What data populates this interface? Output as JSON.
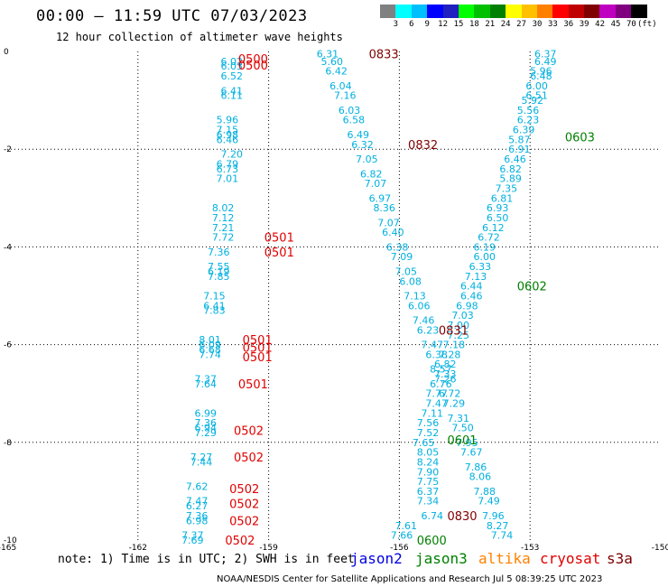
{
  "title": "00:00 – 11:59 UTC 07/03/2023",
  "subtitle": "12 hour collection of altimeter wave heights",
  "colorbar": {
    "colors": [
      "#808080",
      "#00ffff",
      "#00bfff",
      "#0000ff",
      "#2020c0",
      "#00ff00",
      "#00c000",
      "#008000",
      "#ffff00",
      "#ffc000",
      "#ff8000",
      "#ff0000",
      "#c00000",
      "#800000",
      "#c000c0",
      "#800080",
      "#000000"
    ],
    "labels": [
      "3",
      "6",
      "9",
      "12",
      "15",
      "18",
      "21",
      "24",
      "27",
      "30",
      "33",
      "36",
      "39",
      "42",
      "45",
      "70",
      "(ft)"
    ]
  },
  "map": {
    "xlim": [
      -165,
      -150
    ],
    "ylim": [
      -10,
      0
    ],
    "x_ticks": [
      "-165",
      "-162",
      "-159",
      "-156",
      "-153",
      "-150"
    ],
    "y_ticks": [
      "0",
      "-2",
      "-4",
      "-6",
      "-8",
      "-10"
    ]
  },
  "chart_data": {
    "type": "scatter",
    "xlim": [
      -165,
      -150
    ],
    "ylim": [
      -10,
      0
    ],
    "tracks": [
      {
        "color": "#00b0e0",
        "points": [
          [
            -160.1,
            -0.2,
            "6.02"
          ],
          [
            -160.1,
            -0.3,
            "6.03"
          ],
          [
            -160.1,
            -0.5,
            "6.52"
          ],
          [
            -160.1,
            -0.8,
            "6.41"
          ],
          [
            -160.1,
            -0.9,
            "6.11"
          ],
          [
            -160.2,
            -1.4,
            "5.96"
          ],
          [
            -160.2,
            -1.6,
            "7.15"
          ],
          [
            -160.2,
            -1.7,
            "6.98"
          ],
          [
            -160.2,
            -1.8,
            "6.46"
          ],
          [
            -160.1,
            -2.1,
            "7.20"
          ],
          [
            -160.2,
            -2.3,
            "6.79"
          ],
          [
            -160.2,
            -2.4,
            "6.73"
          ],
          [
            -160.2,
            -2.6,
            "7.01"
          ],
          [
            -160.3,
            -3.2,
            "8.02"
          ],
          [
            -160.3,
            -3.4,
            "7.12"
          ],
          [
            -160.3,
            -3.6,
            "7.21"
          ],
          [
            -160.3,
            -3.8,
            "7.72"
          ],
          [
            -160.4,
            -4.1,
            "7.36"
          ],
          [
            -160.4,
            -4.4,
            "7.55"
          ],
          [
            -160.4,
            -4.5,
            "6.19"
          ],
          [
            -160.4,
            -4.6,
            "7.85"
          ],
          [
            -160.5,
            -5.0,
            "7.15"
          ],
          [
            -160.5,
            -5.2,
            "6.41"
          ],
          [
            -160.5,
            -5.3,
            "7.83"
          ],
          [
            -160.6,
            -5.9,
            "8.01"
          ],
          [
            -160.6,
            -6.0,
            "6.09"
          ],
          [
            -160.6,
            -6.1,
            "6.68"
          ],
          [
            -160.6,
            -6.2,
            "7.74"
          ],
          [
            -160.7,
            -6.7,
            "7.37"
          ],
          [
            -160.7,
            -6.8,
            "7.64"
          ],
          [
            -160.7,
            -7.4,
            "6.99"
          ],
          [
            -160.7,
            -7.6,
            "7.36"
          ],
          [
            -160.7,
            -7.7,
            "6.94"
          ],
          [
            -160.7,
            -7.8,
            "7.29"
          ],
          [
            -160.8,
            -8.3,
            "7.27"
          ],
          [
            -160.8,
            -8.4,
            "7.44"
          ],
          [
            -160.9,
            -8.9,
            "7.62"
          ],
          [
            -160.9,
            -9.2,
            "7.47"
          ],
          [
            -160.9,
            -9.3,
            "6.27"
          ],
          [
            -160.9,
            -9.5,
            "7.36"
          ],
          [
            -160.9,
            -9.6,
            "6.98"
          ],
          [
            -161.0,
            -9.9,
            "7.37"
          ],
          [
            -161.0,
            -10.0,
            "7.69"
          ]
        ]
      },
      {
        "color": "#00b0e0",
        "points": [
          [
            -157.9,
            -0.05,
            "6.31"
          ],
          [
            -157.8,
            -0.2,
            "5.60"
          ],
          [
            -157.7,
            -0.4,
            "6.42"
          ],
          [
            -157.6,
            -0.7,
            "6.04"
          ],
          [
            -157.5,
            -0.9,
            "7.16"
          ],
          [
            -157.4,
            -1.2,
            "6.03"
          ],
          [
            -157.3,
            -1.4,
            "6.58"
          ],
          [
            -157.2,
            -1.7,
            "6.49"
          ],
          [
            -157.1,
            -1.9,
            "6.32"
          ],
          [
            -157.0,
            -2.2,
            "7.05"
          ],
          [
            -156.9,
            -2.5,
            "6.82"
          ],
          [
            -156.8,
            -2.7,
            "7.07"
          ],
          [
            -156.7,
            -3.0,
            "6.97"
          ],
          [
            -156.6,
            -3.2,
            "8.36"
          ],
          [
            -156.5,
            -3.5,
            "7.07"
          ],
          [
            -156.4,
            -3.7,
            "6.40"
          ],
          [
            -156.3,
            -4.0,
            "6.38"
          ],
          [
            -156.2,
            -4.2,
            "7.09"
          ],
          [
            -156.1,
            -4.5,
            "7.05"
          ],
          [
            -156.0,
            -4.7,
            "6.08"
          ],
          [
            -155.9,
            -5.0,
            "7.13"
          ],
          [
            -155.8,
            -5.2,
            "6.06"
          ],
          [
            -155.7,
            -5.5,
            "7.46"
          ],
          [
            -155.6,
            -5.7,
            "6.23"
          ],
          [
            -155.5,
            -6.0,
            "7.47"
          ],
          [
            -155.4,
            -6.2,
            "6.38"
          ],
          [
            -155.3,
            -6.5,
            "8.57"
          ],
          [
            -155.2,
            -6.7,
            "7.26"
          ],
          [
            -155.1,
            -7.0,
            "6.72"
          ],
          [
            -155.0,
            -7.2,
            "7.29"
          ],
          [
            -154.9,
            -7.5,
            "7.31"
          ],
          [
            -154.8,
            -7.7,
            "7.50"
          ],
          [
            -154.7,
            -8.0,
            "7.95"
          ],
          [
            -154.6,
            -8.2,
            "7.67"
          ],
          [
            -154.5,
            -8.5,
            "7.86"
          ],
          [
            -154.4,
            -8.7,
            "8.06"
          ],
          [
            -154.3,
            -9.0,
            "7.88"
          ],
          [
            -154.2,
            -9.2,
            "7.49"
          ],
          [
            -154.1,
            -9.5,
            "7.96"
          ],
          [
            -154.0,
            -9.7,
            "8.27"
          ],
          [
            -153.9,
            -9.9,
            "7.74"
          ]
        ]
      },
      {
        "color": "#00b0e0",
        "points": [
          [
            -152.9,
            -0.05,
            "6.37"
          ],
          [
            -152.9,
            -0.2,
            "6.49"
          ],
          [
            -153.0,
            -0.4,
            "5.96"
          ],
          [
            -153.0,
            -0.5,
            "6.48"
          ],
          [
            -153.1,
            -0.7,
            "6.00"
          ],
          [
            -153.1,
            -0.9,
            "6.51"
          ],
          [
            -153.2,
            -1.0,
            "5.92"
          ],
          [
            -153.3,
            -1.2,
            "5.56"
          ],
          [
            -153.3,
            -1.4,
            "6.23"
          ],
          [
            -153.4,
            -1.6,
            "6.39"
          ],
          [
            -153.5,
            -1.8,
            "5.87"
          ],
          [
            -153.5,
            -2.0,
            "6.91"
          ],
          [
            -153.6,
            -2.2,
            "6.46"
          ],
          [
            -153.7,
            -2.4,
            "6.82"
          ],
          [
            -153.7,
            -2.6,
            "5.89"
          ],
          [
            -153.8,
            -2.8,
            "7.35"
          ],
          [
            -153.9,
            -3.0,
            "6.81"
          ],
          [
            -154.0,
            -3.2,
            "6.93"
          ],
          [
            -154.0,
            -3.4,
            "6.50"
          ],
          [
            -154.1,
            -3.6,
            "6.12"
          ],
          [
            -154.2,
            -3.8,
            "6.72"
          ],
          [
            -154.3,
            -4.0,
            "6.19"
          ],
          [
            -154.3,
            -4.2,
            "6.00"
          ],
          [
            -154.4,
            -4.4,
            "6.33"
          ],
          [
            -154.5,
            -4.6,
            "7.13"
          ],
          [
            -154.6,
            -4.8,
            "6.44"
          ],
          [
            -154.6,
            -5.0,
            "6.46"
          ],
          [
            -154.7,
            -5.2,
            "6.98"
          ],
          [
            -154.8,
            -5.4,
            "7.03"
          ],
          [
            -154.9,
            -5.6,
            "7.00"
          ],
          [
            -154.9,
            -5.8,
            "7.25"
          ],
          [
            -155.0,
            -6.0,
            "7.18"
          ],
          [
            -155.1,
            -6.2,
            "7.28"
          ],
          [
            -155.2,
            -6.4,
            "6.82"
          ],
          [
            -155.2,
            -6.6,
            "7.33"
          ],
          [
            -155.3,
            -6.8,
            "6.76"
          ],
          [
            -155.4,
            -7.0,
            "7.77"
          ],
          [
            -155.4,
            -7.2,
            "7.47"
          ],
          [
            -155.5,
            -7.4,
            "7.11"
          ],
          [
            -155.6,
            -7.6,
            "7.56"
          ],
          [
            -155.6,
            -7.8,
            "7.52"
          ],
          [
            -155.7,
            -8.0,
            "7.65"
          ],
          [
            -155.6,
            -8.2,
            "8.05"
          ],
          [
            -155.6,
            -8.4,
            "8.24"
          ],
          [
            -155.6,
            -8.6,
            "7.90"
          ],
          [
            -155.6,
            -8.8,
            "7.75"
          ],
          [
            -155.6,
            -9.0,
            "6.37"
          ],
          [
            -155.6,
            -9.2,
            "7.34"
          ],
          [
            -155.5,
            -9.5,
            "6.74"
          ],
          [
            -156.1,
            -9.7,
            "7.61"
          ],
          [
            -156.2,
            -9.9,
            "7.66"
          ]
        ]
      }
    ],
    "pass_labels": [
      {
        "text": "0833",
        "color": "#800000",
        "x": -156.7,
        "y": -0.05
      },
      {
        "text": "0500",
        "color": "#e00000",
        "x": -159.7,
        "y": -0.15
      },
      {
        "text": "0500",
        "color": "#e00000",
        "x": -159.7,
        "y": -0.28
      },
      {
        "text": "0603",
        "color": "#008000",
        "x": -152.2,
        "y": -1.75
      },
      {
        "text": "0832",
        "color": "#800000",
        "x": -155.8,
        "y": -1.9
      },
      {
        "text": "0501",
        "color": "#e00000",
        "x": -159.1,
        "y": -3.8
      },
      {
        "text": "0501",
        "color": "#e00000",
        "x": -159.1,
        "y": -4.1
      },
      {
        "text": "0602",
        "color": "#008000",
        "x": -153.3,
        "y": -4.8
      },
      {
        "text": "0831",
        "color": "#800000",
        "x": -155.1,
        "y": -5.7
      },
      {
        "text": "0501",
        "color": "#e00000",
        "x": -159.6,
        "y": -5.9
      },
      {
        "text": "0501",
        "color": "#e00000",
        "x": -159.6,
        "y": -6.05
      },
      {
        "text": "0501",
        "color": "#e00000",
        "x": -159.6,
        "y": -6.25
      },
      {
        "text": "0501",
        "color": "#e00000",
        "x": -159.7,
        "y": -6.8
      },
      {
        "text": "0601",
        "color": "#008000",
        "x": -154.9,
        "y": -7.95
      },
      {
        "text": "0502",
        "color": "#e00000",
        "x": -159.8,
        "y": -7.75
      },
      {
        "text": "0502",
        "color": "#e00000",
        "x": -159.8,
        "y": -8.3
      },
      {
        "text": "0502",
        "color": "#e00000",
        "x": -159.9,
        "y": -8.95
      },
      {
        "text": "0502",
        "color": "#e00000",
        "x": -159.9,
        "y": -9.25
      },
      {
        "text": "0502",
        "color": "#e00000",
        "x": -159.9,
        "y": -9.6
      },
      {
        "text": "0830",
        "color": "#800000",
        "x": -154.9,
        "y": -9.5
      },
      {
        "text": "0502",
        "color": "#e00000",
        "x": -160.0,
        "y": -10.0
      },
      {
        "text": "0600",
        "color": "#008000",
        "x": -155.6,
        "y": -10.0
      }
    ]
  },
  "note": "note: 1) Time is in UTC; 2) SWH is in feet",
  "satellites": [
    {
      "name": "jason2",
      "color": "#0000e0"
    },
    {
      "name": "jason3",
      "color": "#008000"
    },
    {
      "name": "altika",
      "color": "#ff8000"
    },
    {
      "name": "cryosat",
      "color": "#e00000"
    },
    {
      "name": "s3a",
      "color": "#800000"
    }
  ],
  "credit": "NOAA/NESDIS Center for Satellite Applications and Research   Jul  5 08:39:25 UTC 2023"
}
